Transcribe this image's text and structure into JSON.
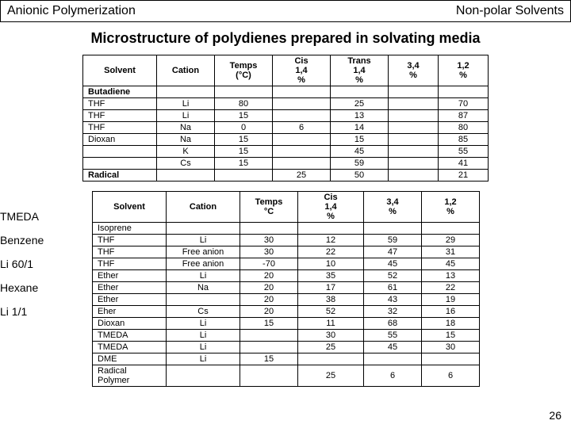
{
  "header": {
    "left": "Anionic Polymerization",
    "right": "Non-polar Solvents"
  },
  "title": "Microstructure of polydienes prepared in solvating media",
  "labels": [
    "TMEDA",
    "Benzene",
    "Li 60/1",
    "Hexane",
    "Li 1/1"
  ],
  "page_number": "26",
  "table1": {
    "columns": [
      "Solvent",
      "Cation",
      "Temps (°C)",
      "Cis 1,4 %",
      "Trans 1,4 %",
      "3,4 %",
      "1,2 %"
    ],
    "rows": [
      [
        "Butadiene",
        "",
        "",
        "",
        "",
        "",
        ""
      ],
      [
        "THF",
        "Li",
        "80",
        "",
        "25",
        "",
        "70"
      ],
      [
        "THF",
        "Li",
        "15",
        "",
        "13",
        "",
        "87"
      ],
      [
        "THF",
        "Na",
        "0",
        "6",
        "14",
        "",
        "80"
      ],
      [
        "Dioxan",
        "Na",
        "15",
        "",
        "15",
        "",
        "85"
      ],
      [
        "",
        "K",
        "15",
        "",
        "45",
        "",
        "55"
      ],
      [
        "",
        "Cs",
        "15",
        "",
        "59",
        "",
        "41"
      ],
      [
        "Radical",
        "",
        "",
        "25",
        "50",
        "",
        "21"
      ]
    ],
    "bold_rows": [
      0,
      7
    ]
  },
  "table2": {
    "columns": [
      "Solvent",
      "Cation",
      "Temps °C",
      "Cis 1,4 %",
      "3,4 %",
      "1,2 %"
    ],
    "rows": [
      [
        "Isoprene",
        "",
        "",
        "",
        "",
        ""
      ],
      [
        "THF",
        "Li",
        "30",
        "12",
        "59",
        "29"
      ],
      [
        "THF",
        "Free anion",
        "30",
        "22",
        "47",
        "31"
      ],
      [
        "THF",
        "Free anion",
        "-70",
        "10",
        "45",
        "45"
      ],
      [
        "Ether",
        "Li",
        "20",
        "35",
        "52",
        "13"
      ],
      [
        "Ether",
        "Na",
        "20",
        "17",
        "61",
        "22"
      ],
      [
        "Ether",
        "",
        "20",
        "38",
        "43",
        "19"
      ],
      [
        "Eher",
        "Cs",
        "20",
        "52",
        "32",
        "16"
      ],
      [
        "Dioxan",
        "Li",
        "15",
        "11",
        "68",
        "18"
      ],
      [
        "TMEDA",
        "Li",
        "",
        "30",
        "55",
        "15"
      ],
      [
        "TMEDA",
        "Li",
        "",
        "25",
        "45",
        "30"
      ],
      [
        "DME",
        "Li",
        "15",
        "",
        "",
        ""
      ],
      [
        "Radical Polymer",
        "",
        "",
        "25",
        "6",
        "6"
      ]
    ],
    "bold_rows": []
  },
  "colors": {
    "border": "#000000",
    "bg": "#ffffff",
    "text": "#000000"
  }
}
